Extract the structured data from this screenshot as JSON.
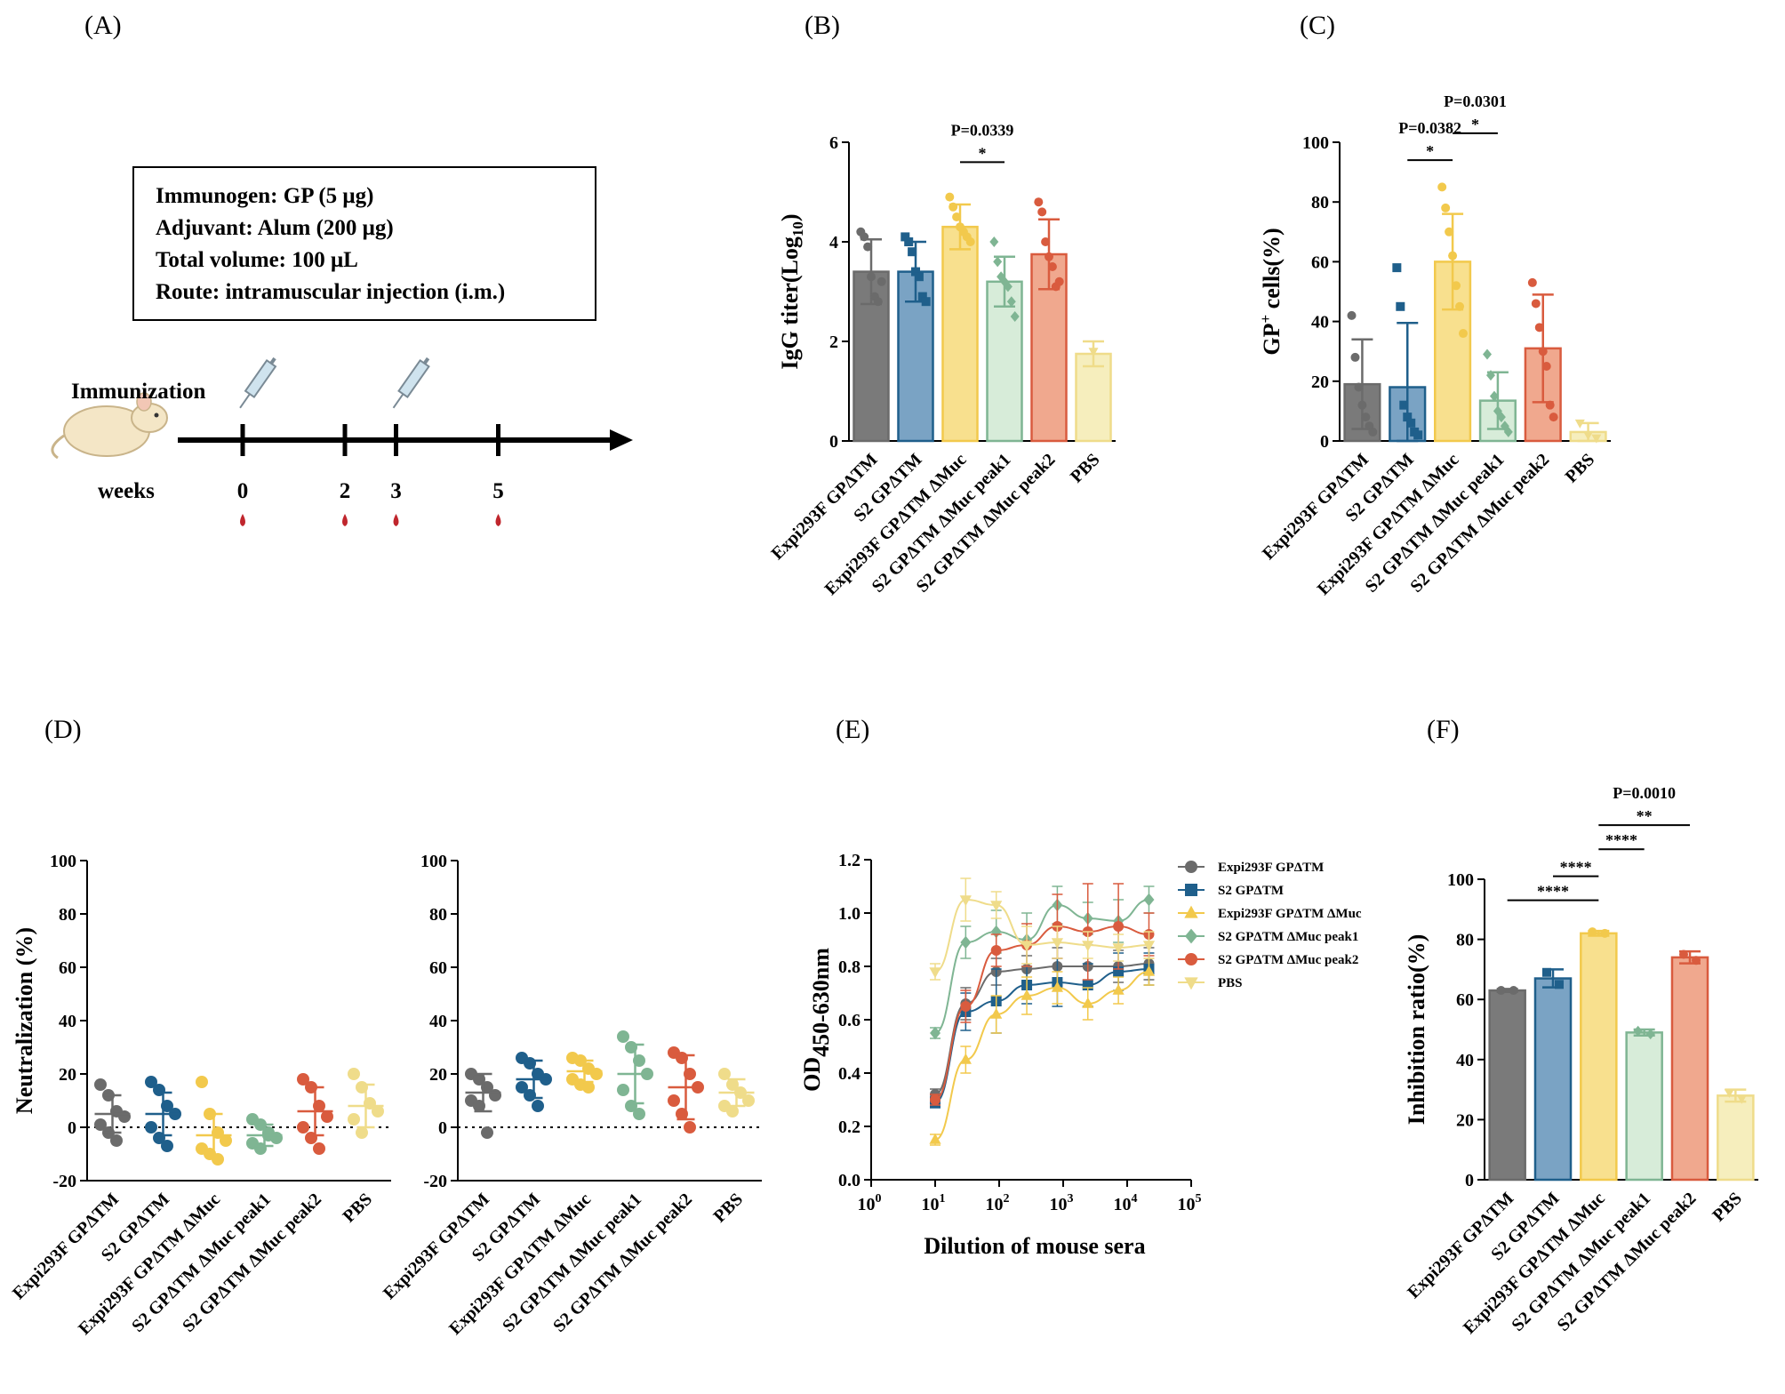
{
  "panel_labels": [
    "(A)",
    "(B)",
    "(C)",
    "(D)",
    "(E)",
    "(F)"
  ],
  "colors": {
    "Expi293F GPΔTM": "#6b6b6b",
    "S2 GPΔTM": "#1f5f8b",
    "Expi293F GPΔTM ΔMuc": "#f2c94c",
    "S2 GPΔTM ΔMuc peak1": "#7fb593",
    "S2 GPΔTM ΔMuc peak2": "#d95b3e",
    "PBS": "#efdc8a"
  },
  "fills": {
    "Expi293F GPΔTM": "#7a7a7a",
    "S2 GPΔTM": "#7aa3c4",
    "Expi293F GPΔTM ΔMuc": "#f8e08e",
    "S2 GPΔTM ΔMuc peak1": "#d7ecd9",
    "S2 GPΔTM ΔMuc peak2": "#f0a88e",
    "PBS": "#f6eebd"
  },
  "schedule": {
    "box_lines": [
      "Immunogen: GP (5 μg)",
      "Adjuvant: Alum (200 μg)",
      "Total volume: 100 μL",
      "Route: intramuscular injection (i.m.)"
    ],
    "immunization_label": "Immunization",
    "weeks_label": "weeks",
    "weeks": [
      0,
      2,
      3,
      5
    ],
    "week_labels": [
      "0",
      "2",
      "3",
      "5"
    ],
    "injection_weeks": [
      0,
      3
    ],
    "bleed_weeks": [
      0,
      2,
      3,
      5
    ]
  },
  "chart_data": [
    {
      "panel": "B",
      "type": "bar",
      "ylabel": "IgG titer(Log10)",
      "ylabel_main": "IgG titer(Log",
      "ylabel_sub": "10",
      "ylabel_end": ")",
      "ylim": [
        0,
        6
      ],
      "yticks": [
        0,
        2,
        4,
        6
      ],
      "categories": [
        "Expi293F GPΔTM",
        "S2 GPΔTM",
        "Expi293F GPΔTM ΔMuc",
        "S2 GPΔTM ΔMuc peak1",
        "S2 GPΔTM ΔMuc peak2",
        "PBS"
      ],
      "values": [
        3.4,
        3.4,
        4.3,
        3.2,
        3.75,
        1.75
      ],
      "errors": [
        0.65,
        0.6,
        0.45,
        0.5,
        0.7,
        0.25
      ],
      "points": [
        [
          4.2,
          4.1,
          3.9,
          3.3,
          2.9,
          2.8,
          3.2
        ],
        [
          4.1,
          4.0,
          3.8,
          3.4,
          3.3,
          2.9,
          2.8
        ],
        [
          4.9,
          4.7,
          4.5,
          4.3,
          4.2,
          4.1,
          4.0
        ],
        [
          4.0,
          3.6,
          3.3,
          3.2,
          3.1,
          2.8,
          2.5
        ],
        [
          4.8,
          4.6,
          4.0,
          3.7,
          3.5,
          3.1,
          3.2
        ],
        [
          1.8
        ]
      ],
      "annotations": [
        {
          "from": 2,
          "to": 3,
          "text": "*",
          "p": "P=0.0339",
          "y": 5.6
        }
      ]
    },
    {
      "panel": "C",
      "type": "bar",
      "ylabel": "GP+ cells(%)",
      "ylabel_main": "GP",
      "ylabel_sup": "+",
      "ylabel_end": " cells(%)",
      "ylim": [
        0,
        100
      ],
      "yticks": [
        0,
        20,
        40,
        60,
        80,
        100
      ],
      "categories": [
        "Expi293F GPΔTM",
        "S2 GPΔTM",
        "Expi293F GPΔTM ΔMuc",
        "S2 GPΔTM ΔMuc peak1",
        "S2 GPΔTM ΔMuc peak2",
        "PBS"
      ],
      "values": [
        19,
        18,
        60,
        13.5,
        31,
        3
      ],
      "errors": [
        15,
        21.5,
        16,
        9.5,
        18,
        3
      ],
      "points": [
        [
          42,
          28,
          18,
          12,
          8,
          5,
          3
        ],
        [
          58,
          45,
          12,
          8,
          6,
          3,
          2
        ],
        [
          85,
          78,
          70,
          62,
          52,
          45,
          36
        ],
        [
          29,
          22,
          15,
          10,
          8,
          5,
          3
        ],
        [
          53,
          46,
          38,
          30,
          25,
          12,
          8
        ],
        [
          6,
          2,
          1
        ]
      ],
      "annotations": [
        {
          "from": 1,
          "to": 2,
          "text": "*",
          "p": "P=0.0382",
          "y": 94
        },
        {
          "from": 2,
          "to": 3,
          "text": "*",
          "p": "P=0.0301",
          "y": 103
        }
      ]
    },
    {
      "panel": "D-left",
      "type": "scatter",
      "ylabel": "Neutralization (%)",
      "ylim": [
        -20,
        100
      ],
      "yticks": [
        -20,
        0,
        20,
        40,
        60,
        80,
        100
      ],
      "ytick_labels": [
        "-20",
        "0",
        "20",
        "40",
        "60",
        "80",
        "100"
      ],
      "categories": [
        "Expi293F GPΔTM",
        "S2 GPΔTM",
        "Expi293F GPΔTM ΔMuc",
        "S2 GPΔTM ΔMuc peak1",
        "S2 GPΔTM ΔMuc peak2",
        "PBS"
      ],
      "means": [
        5,
        5,
        -3,
        -3,
        6,
        8
      ],
      "sds": [
        7,
        8,
        8,
        4,
        9,
        8
      ],
      "points": [
        [
          16,
          12,
          6,
          4,
          1,
          -2,
          -5
        ],
        [
          17,
          14,
          8,
          5,
          0,
          -4,
          -7
        ],
        [
          17,
          5,
          -2,
          -5,
          -8,
          -10,
          -12
        ],
        [
          3,
          1,
          -2,
          -4,
          -6,
          -8,
          -3
        ],
        [
          18,
          15,
          8,
          4,
          0,
          -4,
          -8
        ],
        [
          20,
          15,
          9,
          6,
          3,
          -2
        ]
      ]
    },
    {
      "panel": "D-right",
      "type": "scatter",
      "ylim": [
        -20,
        100
      ],
      "yticks": [
        -20,
        0,
        20,
        40,
        60,
        80,
        100
      ],
      "ytick_labels": [
        "-20",
        "0",
        "20",
        "40",
        "60",
        "80",
        "100"
      ],
      "categories": [
        "Expi293F GPΔTM",
        "S2 GPΔTM",
        "Expi293F GPΔTM ΔMuc",
        "S2 GPΔTM ΔMuc peak1",
        "S2 GPΔTM ΔMuc peak2",
        "PBS"
      ],
      "means": [
        13,
        18,
        21,
        20,
        15,
        13
      ],
      "sds": [
        7,
        7,
        4,
        11,
        12,
        5
      ],
      "points": [
        [
          20,
          18,
          15,
          12,
          10,
          8,
          -2
        ],
        [
          26,
          24,
          20,
          18,
          15,
          12,
          8
        ],
        [
          26,
          25,
          22,
          20,
          18,
          16,
          15
        ],
        [
          34,
          30,
          25,
          20,
          14,
          8,
          5
        ],
        [
          28,
          26,
          20,
          15,
          10,
          5,
          0
        ],
        [
          20,
          16,
          13,
          10,
          8,
          6
        ]
      ]
    },
    {
      "panel": "E",
      "type": "line",
      "xlabel": "Dilution of mouse sera",
      "ylabel": "OD450-630nm",
      "ylabel_main": "OD",
      "ylabel_sub": "450-630nm",
      "xscale": "log",
      "xlim": [
        1,
        100000
      ],
      "xtick_exps": [
        "0",
        "1",
        "2",
        "3",
        "4",
        "5"
      ],
      "ylim": [
        0,
        1.2
      ],
      "yticks": [
        0,
        0.2,
        0.4,
        0.6,
        0.8,
        1.0,
        1.2
      ],
      "ytick_labels": [
        "0.0",
        "0.2",
        "0.4",
        "0.6",
        "0.8",
        "1.0",
        "1.2"
      ],
      "x": [
        10,
        30,
        90,
        270,
        810,
        2430,
        7290,
        21870
      ],
      "legend_position": "right",
      "series": [
        {
          "name": "Expi293F GPΔTM",
          "marker": "circle",
          "y": [
            0.32,
            0.66,
            0.78,
            0.79,
            0.8,
            0.8,
            0.8,
            0.81
          ],
          "err": [
            0.02,
            0.06,
            0.05,
            0.05,
            0.07,
            0.08,
            0.06,
            0.06
          ]
        },
        {
          "name": "S2 GPΔTM",
          "marker": "square",
          "y": [
            0.29,
            0.63,
            0.67,
            0.73,
            0.74,
            0.73,
            0.78,
            0.79
          ],
          "err": [
            0.02,
            0.07,
            0.12,
            0.07,
            0.09,
            0.08,
            0.07,
            0.06
          ]
        },
        {
          "name": "Expi293F GPΔTM ΔMuc",
          "marker": "triangle",
          "y": [
            0.15,
            0.45,
            0.62,
            0.69,
            0.72,
            0.66,
            0.71,
            0.78
          ],
          "err": [
            0.02,
            0.05,
            0.07,
            0.07,
            0.06,
            0.06,
            0.05,
            0.05
          ]
        },
        {
          "name": "S2 GPΔTM ΔMuc peak1",
          "marker": "diamond",
          "y": [
            0.55,
            0.89,
            0.93,
            0.9,
            1.03,
            0.98,
            0.97,
            1.05
          ],
          "err": [
            0.02,
            0.06,
            0.08,
            0.1,
            0.07,
            0.06,
            0.08,
            0.05
          ]
        },
        {
          "name": "S2 GPΔTM ΔMuc peak2",
          "marker": "circle",
          "y": [
            0.3,
            0.65,
            0.86,
            0.88,
            0.95,
            0.93,
            0.95,
            0.92
          ],
          "err": [
            0.02,
            0.06,
            0.06,
            0.08,
            0.12,
            0.18,
            0.16,
            0.08
          ]
        },
        {
          "name": "PBS",
          "marker": "triangle-down",
          "y": [
            0.78,
            1.05,
            1.03,
            0.88,
            0.89,
            0.88,
            0.87,
            0.88
          ],
          "err": [
            0.03,
            0.08,
            0.05,
            0.07,
            0.06,
            0.05,
            0.05,
            0.05
          ]
        }
      ]
    },
    {
      "panel": "F",
      "type": "bar",
      "ylabel": "Inhibition ratio(%)",
      "ylim": [
        0,
        100
      ],
      "yticks": [
        0,
        20,
        40,
        60,
        80,
        100
      ],
      "categories": [
        "Expi293F GPΔTM",
        "S2 GPΔTM",
        "Expi293F GPΔTM ΔMuc",
        "S2 GPΔTM ΔMuc peak1",
        "S2 GPΔTM ΔMuc peak2",
        "PBS"
      ],
      "values": [
        63,
        67,
        82,
        49,
        74,
        28
      ],
      "errors": [
        0.5,
        3,
        0.8,
        1,
        2,
        2
      ],
      "points": [
        [
          63,
          63
        ],
        [
          69,
          65
        ],
        [
          82.5,
          82
        ],
        [
          49.5,
          48.5
        ],
        [
          75,
          73
        ],
        [
          29,
          27
        ]
      ],
      "annotations": [
        {
          "from": 0,
          "to": 2,
          "text": "****",
          "y": 93
        },
        {
          "from": 1,
          "to": 2,
          "text": "****",
          "y": 101
        },
        {
          "from": 2,
          "to": 3,
          "text": "****",
          "y": 110
        },
        {
          "from": 2,
          "to": 4,
          "text": "**",
          "p": "P=0.0010",
          "y": 118
        }
      ]
    }
  ]
}
